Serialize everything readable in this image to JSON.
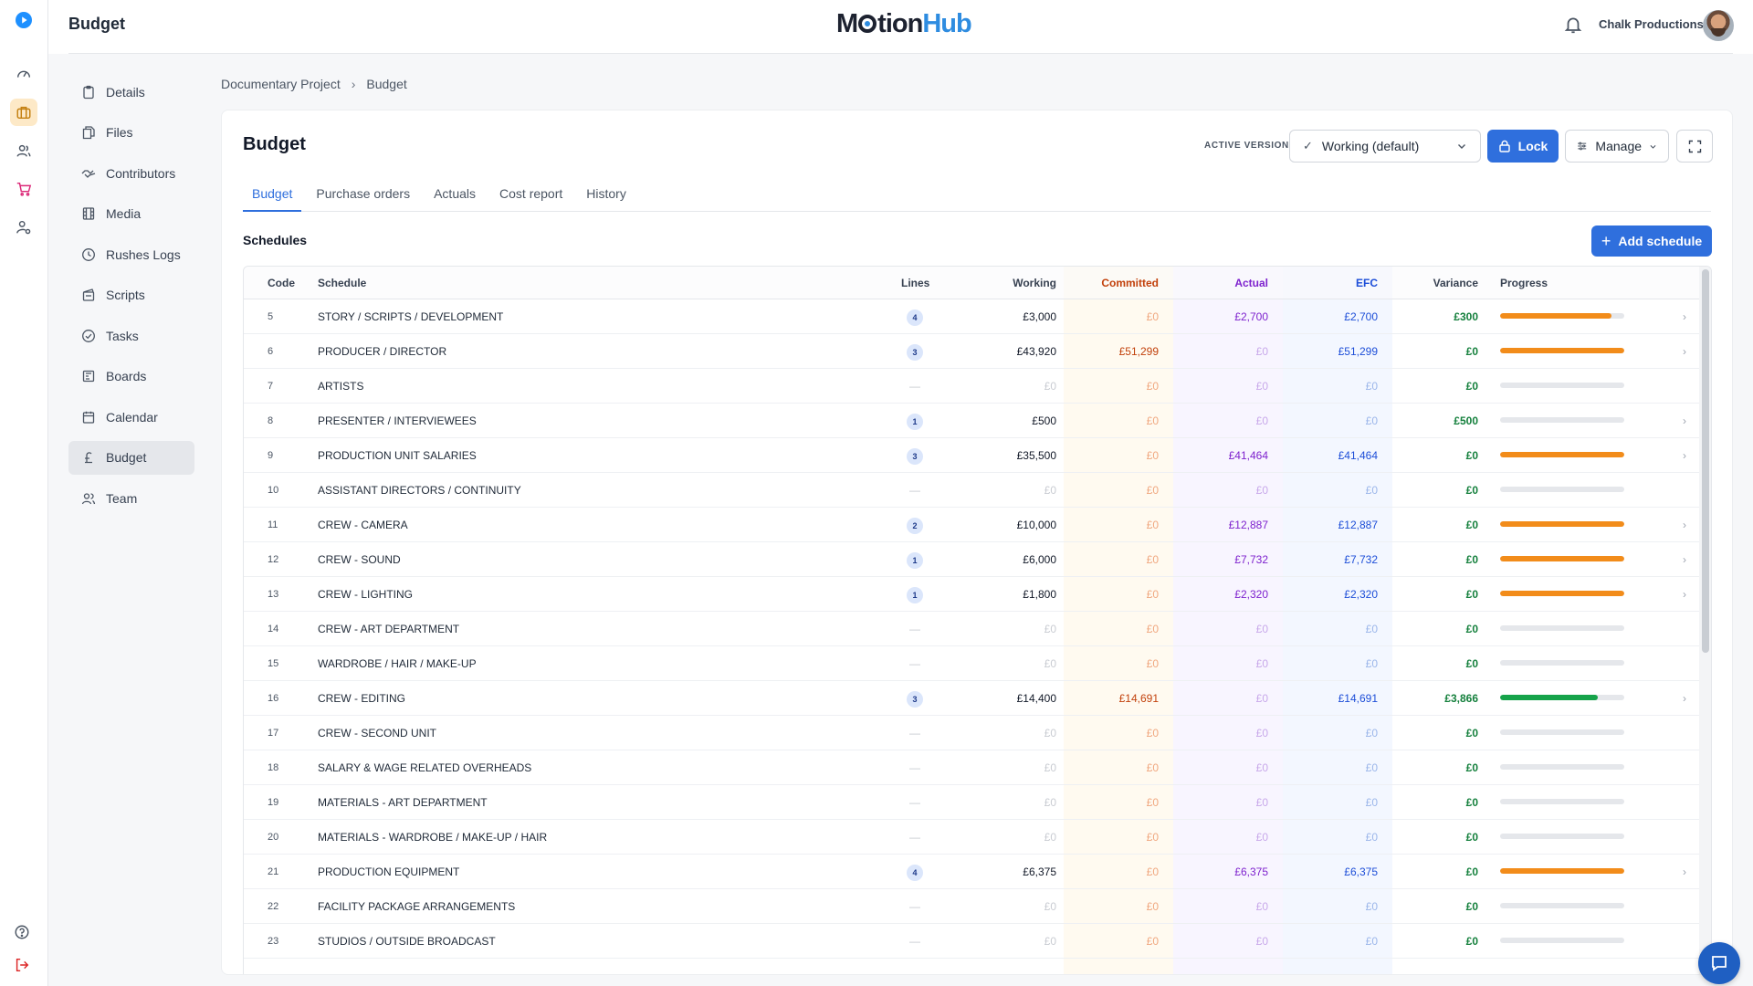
{
  "header": {
    "page_name": "Budget",
    "logo_left": "M",
    "logo_mid": "tion",
    "logo_right": "Hub",
    "company": "Chalk Productions"
  },
  "rail": [
    "play-logo-icon",
    "dashboard-icon",
    "projects-icon",
    "people-icon",
    "cart-icon",
    "user-settings-icon"
  ],
  "sidenav": [
    {
      "label": "Details",
      "icon": "clipboard-icon"
    },
    {
      "label": "Files",
      "icon": "files-icon"
    },
    {
      "label": "Contributors",
      "icon": "handshake-icon"
    },
    {
      "label": "Media",
      "icon": "film-icon"
    },
    {
      "label": "Rushes Logs",
      "icon": "clock-icon"
    },
    {
      "label": "Scripts",
      "icon": "scripts-icon"
    },
    {
      "label": "Tasks",
      "icon": "check-circle-icon"
    },
    {
      "label": "Boards",
      "icon": "board-icon"
    },
    {
      "label": "Calendar",
      "icon": "calendar-icon"
    },
    {
      "label": "Budget",
      "icon": "pound-icon",
      "active": true
    },
    {
      "label": "Team",
      "icon": "team-icon"
    }
  ],
  "breadcrumb": {
    "project": "Documentary Project",
    "sep": "›",
    "current": "Budget"
  },
  "card": {
    "title": "Budget",
    "active_version_label": "ACTIVE VERSION",
    "version_value": "Working (default)",
    "lock_label": "Lock",
    "manage_label": "Manage",
    "tabs": [
      "Budget",
      "Purchase orders",
      "Actuals",
      "Cost report",
      "History"
    ],
    "active_tab": 0,
    "schedules_title": "Schedules",
    "add_schedule_label": "Add schedule"
  },
  "table": {
    "headers": {
      "code": "Code",
      "schedule": "Schedule",
      "lines": "Lines",
      "working": "Working",
      "committed": "Committed",
      "actual": "Actual",
      "efc": "EFC",
      "variance": "Variance",
      "progress": "Progress"
    },
    "colors": {
      "committed": "#c2410c",
      "actual": "#7e22ce",
      "efc": "#1d4ed8",
      "variance": "#15803d",
      "progress_orange": "#f28c1a",
      "progress_green": "#16a34a"
    },
    "rows": [
      {
        "code": "5",
        "schedule": "STORY / SCRIPTS / DEVELOPMENT",
        "lines": "4",
        "working": "£3,000",
        "committed": "£0",
        "actual": "£2,700",
        "efc": "£2,700",
        "variance": "£300",
        "progress": 0.9,
        "bar": "orange"
      },
      {
        "code": "6",
        "schedule": "PRODUCER / DIRECTOR",
        "lines": "3",
        "working": "£43,920",
        "committed": "£51,299",
        "actual": "£0",
        "efc": "£51,299",
        "variance": "£0",
        "progress": 1.0,
        "bar": "orange"
      },
      {
        "code": "7",
        "schedule": "ARTISTS",
        "lines": "",
        "working": "£0",
        "committed": "£0",
        "actual": "£0",
        "efc": "£0",
        "variance": "£0",
        "progress": 0,
        "bar": "none"
      },
      {
        "code": "8",
        "schedule": "PRESENTER / INTERVIEWEES",
        "lines": "1",
        "working": "£500",
        "committed": "£0",
        "actual": "£0",
        "efc": "£0",
        "variance": "£500",
        "progress": 0,
        "bar": "none"
      },
      {
        "code": "9",
        "schedule": "PRODUCTION UNIT SALARIES",
        "lines": "3",
        "working": "£35,500",
        "committed": "£0",
        "actual": "£41,464",
        "efc": "£41,464",
        "variance": "£0",
        "progress": 1.0,
        "bar": "orange"
      },
      {
        "code": "10",
        "schedule": "ASSISTANT DIRECTORS / CONTINUITY",
        "lines": "",
        "working": "£0",
        "committed": "£0",
        "actual": "£0",
        "efc": "£0",
        "variance": "£0",
        "progress": 0,
        "bar": "none"
      },
      {
        "code": "11",
        "schedule": "CREW - CAMERA",
        "lines": "2",
        "working": "£10,000",
        "committed": "£0",
        "actual": "£12,887",
        "efc": "£12,887",
        "variance": "£0",
        "progress": 1.0,
        "bar": "orange"
      },
      {
        "code": "12",
        "schedule": "CREW - SOUND",
        "lines": "1",
        "working": "£6,000",
        "committed": "£0",
        "actual": "£7,732",
        "efc": "£7,732",
        "variance": "£0",
        "progress": 1.0,
        "bar": "orange"
      },
      {
        "code": "13",
        "schedule": "CREW - LIGHTING",
        "lines": "1",
        "working": "£1,800",
        "committed": "£0",
        "actual": "£2,320",
        "efc": "£2,320",
        "variance": "£0",
        "progress": 1.0,
        "bar": "orange"
      },
      {
        "code": "14",
        "schedule": "CREW - ART DEPARTMENT",
        "lines": "",
        "working": "£0",
        "committed": "£0",
        "actual": "£0",
        "efc": "£0",
        "variance": "£0",
        "progress": 0,
        "bar": "none"
      },
      {
        "code": "15",
        "schedule": "WARDROBE / HAIR / MAKE-UP",
        "lines": "",
        "working": "£0",
        "committed": "£0",
        "actual": "£0",
        "efc": "£0",
        "variance": "£0",
        "progress": 0,
        "bar": "none"
      },
      {
        "code": "16",
        "schedule": "CREW - EDITING",
        "lines": "3",
        "working": "£14,400",
        "committed": "£14,691",
        "actual": "£0",
        "efc": "£14,691",
        "variance": "£3,866",
        "progress": 0.79,
        "bar": "green"
      },
      {
        "code": "17",
        "schedule": "CREW - SECOND UNIT",
        "lines": "",
        "working": "£0",
        "committed": "£0",
        "actual": "£0",
        "efc": "£0",
        "variance": "£0",
        "progress": 0,
        "bar": "none"
      },
      {
        "code": "18",
        "schedule": "SALARY & WAGE RELATED OVERHEADS",
        "lines": "",
        "working": "£0",
        "committed": "£0",
        "actual": "£0",
        "efc": "£0",
        "variance": "£0",
        "progress": 0,
        "bar": "none"
      },
      {
        "code": "19",
        "schedule": "MATERIALS - ART DEPARTMENT",
        "lines": "",
        "working": "£0",
        "committed": "£0",
        "actual": "£0",
        "efc": "£0",
        "variance": "£0",
        "progress": 0,
        "bar": "none"
      },
      {
        "code": "20",
        "schedule": "MATERIALS - WARDROBE / MAKE-UP / HAIR",
        "lines": "",
        "working": "£0",
        "committed": "£0",
        "actual": "£0",
        "efc": "£0",
        "variance": "£0",
        "progress": 0,
        "bar": "none"
      },
      {
        "code": "21",
        "schedule": "PRODUCTION EQUIPMENT",
        "lines": "4",
        "working": "£6,375",
        "committed": "£0",
        "actual": "£6,375",
        "efc": "£6,375",
        "variance": "£0",
        "progress": 1.0,
        "bar": "orange"
      },
      {
        "code": "22",
        "schedule": "FACILITY PACKAGE ARRANGEMENTS",
        "lines": "",
        "working": "£0",
        "committed": "£0",
        "actual": "£0",
        "efc": "£0",
        "variance": "£0",
        "progress": 0,
        "bar": "none"
      },
      {
        "code": "23",
        "schedule": "STUDIOS / OUTSIDE BROADCAST",
        "lines": "",
        "working": "£0",
        "committed": "£0",
        "actual": "£0",
        "efc": "£0",
        "variance": "£0",
        "progress": 0,
        "bar": "none"
      }
    ]
  }
}
